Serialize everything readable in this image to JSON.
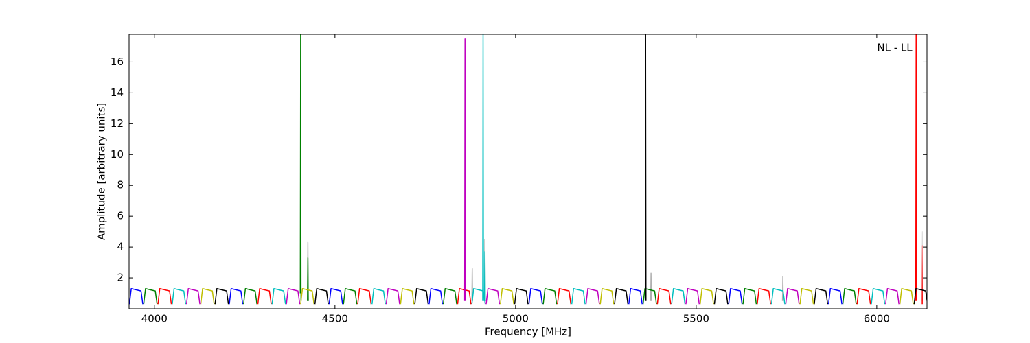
{
  "chart_data": {
    "type": "line",
    "annotation": "NL - LL",
    "x_label": "Frequency [MHz]",
    "y_label": "Amplitude [arbitrary units]",
    "xlim": [
      3930,
      6139
    ],
    "ylim": [
      0,
      17.8
    ],
    "xticks": [
      4000,
      4500,
      5000,
      5500,
      6000
    ],
    "yticks": [
      2,
      4,
      6,
      8,
      10,
      12,
      14,
      16
    ],
    "series": [
      {
        "color": "#b0b0b0",
        "x": [
          4424,
          4425,
          4426,
          null,
          4879,
          4880,
          4881,
          null,
          4914,
          4915,
          4916,
          null,
          5374,
          5375,
          5376,
          null,
          5739,
          5740,
          5741,
          null,
          6124,
          6125,
          6126
        ],
        "values": [
          0.5,
          4.3,
          0.5,
          null,
          0.5,
          2.6,
          0.5,
          null,
          0.5,
          4.5,
          0.5,
          null,
          0.5,
          2.3,
          0.5,
          null,
          0.5,
          2.1,
          0.5,
          null,
          0.5,
          5,
          0.5
        ]
      },
      {
        "color": "#0000ff",
        "x": [
          3931,
          3936,
          3963,
          3968,
          null,
          4207.5,
          4212.5,
          4239.5,
          4244.5,
          null,
          4484,
          4489,
          4516,
          4521,
          null,
          4760.5,
          4765.5,
          4792.5,
          4797.5,
          null,
          5037,
          5042,
          5069,
          5074,
          null,
          5313.5,
          5318.5,
          5345.5,
          5350.5,
          null,
          5590,
          5595,
          5622,
          5627,
          null,
          5866.5,
          5871.5,
          5898.5,
          5903.5
        ],
        "values": [
          0.3,
          1.3,
          1.15,
          0.3,
          null,
          0.3,
          1.3,
          1.15,
          0.3,
          null,
          0.3,
          1.3,
          1.15,
          0.3,
          null,
          0.3,
          1.3,
          1.15,
          0.3,
          null,
          0.3,
          1.3,
          1.15,
          0.3,
          null,
          0.3,
          1.3,
          1.15,
          0.3,
          null,
          0.3,
          1.3,
          1.15,
          0.3,
          null,
          0.3,
          1.3,
          1.15,
          0.3
        ]
      },
      {
        "color": "#008000",
        "x": [
          3970.5,
          3975.5,
          4002.5,
          4007.5,
          null,
          4247,
          4252,
          4279,
          4284,
          null,
          4523.5,
          4528.5,
          4555.5,
          4560.5,
          null,
          4800,
          4805,
          4832,
          4837,
          null,
          5076.5,
          5081.5,
          5108.5,
          5113.5,
          null,
          5353,
          5358,
          5385,
          5390,
          null,
          5629.5,
          5634.5,
          5661.5,
          5666.5,
          null,
          5906,
          5911,
          5938,
          5943,
          null,
          4404,
          4405,
          4406,
          null,
          4424,
          4425,
          4426
        ],
        "values": [
          0.3,
          1.3,
          1.15,
          0.3,
          null,
          0.3,
          1.3,
          1.15,
          0.3,
          null,
          0.3,
          1.3,
          1.15,
          0.3,
          null,
          0.3,
          1.3,
          1.15,
          0.3,
          null,
          0.3,
          1.3,
          1.15,
          0.3,
          null,
          0.3,
          1.3,
          1.15,
          0.3,
          null,
          0.3,
          1.3,
          1.15,
          0.3,
          null,
          0.3,
          1.3,
          1.15,
          0.3,
          null,
          1,
          17.8,
          0.5,
          null,
          0.5,
          3.3,
          0.5
        ]
      },
      {
        "color": "#ff0000",
        "x": [
          4010,
          4015,
          4042,
          4047,
          null,
          4286.5,
          4291.5,
          4318.5,
          4323.5,
          null,
          4563,
          4568,
          4595,
          4600,
          null,
          4839.5,
          4844.5,
          4871.5,
          4876.5,
          null,
          5116,
          5121,
          5148,
          5153,
          null,
          5392.5,
          5397.5,
          5424.5,
          5429.5,
          null,
          5669,
          5674,
          5701,
          5706,
          null,
          5945.5,
          5950.5,
          5977.5,
          5982.5,
          null,
          6108,
          6109,
          6110,
          null,
          6124,
          6125,
          6126
        ],
        "values": [
          0.3,
          1.3,
          1.15,
          0.3,
          null,
          0.3,
          1.3,
          1.15,
          0.3,
          null,
          0.3,
          1.3,
          1.15,
          0.3,
          null,
          0.3,
          1.3,
          1.15,
          0.3,
          null,
          0.3,
          1.3,
          1.15,
          0.3,
          null,
          0.3,
          1.3,
          1.15,
          0.3,
          null,
          0.3,
          1.3,
          1.15,
          0.3,
          null,
          0.3,
          1.3,
          1.15,
          0.3,
          null,
          0.5,
          17.8,
          0.5,
          null,
          0.3,
          4.1,
          0.3
        ]
      },
      {
        "color": "#00bfbf",
        "x": [
          4049.5,
          4054.5,
          4081.5,
          4086.5,
          null,
          4326,
          4331,
          4358,
          4363,
          null,
          4602.5,
          4607.5,
          4634.5,
          4639.5,
          null,
          4879,
          4884,
          4911,
          4916,
          null,
          5155.5,
          5160.5,
          5187.5,
          5192.5,
          null,
          5432,
          5437,
          5464,
          5469,
          null,
          5708.5,
          5713.5,
          5740.5,
          5745.5,
          null,
          5985,
          5990,
          6017,
          6022,
          null,
          4909,
          4910,
          4911,
          null,
          4914,
          4915,
          4916
        ],
        "values": [
          0.3,
          1.3,
          1.15,
          0.3,
          null,
          0.3,
          1.3,
          1.15,
          0.3,
          null,
          0.3,
          1.3,
          1.15,
          0.3,
          null,
          0.3,
          1.3,
          1.15,
          0.3,
          null,
          0.3,
          1.3,
          1.15,
          0.3,
          null,
          0.3,
          1.3,
          1.15,
          0.3,
          null,
          0.3,
          1.3,
          1.15,
          0.3,
          null,
          0.3,
          1.3,
          1.15,
          0.3,
          null,
          0.5,
          17.8,
          0.5,
          null,
          0.5,
          3.7,
          0.5
        ]
      },
      {
        "color": "#bf00bf",
        "x": [
          4089,
          4094,
          4121,
          4126,
          null,
          4365.5,
          4370.5,
          4397.5,
          4402.5,
          null,
          4642,
          4647,
          4674,
          4679,
          null,
          4918.5,
          4923.5,
          4950.5,
          4955.5,
          null,
          5195,
          5200,
          5227,
          5232,
          null,
          5471.5,
          5476.5,
          5503.5,
          5508.5,
          null,
          5748,
          5753,
          5780,
          5785,
          null,
          6024.5,
          6029.5,
          6056.5,
          6061.5,
          null,
          4859,
          4860,
          4861
        ],
        "values": [
          0.3,
          1.3,
          1.15,
          0.3,
          null,
          0.3,
          1.3,
          1.15,
          0.3,
          null,
          0.3,
          1.3,
          1.15,
          0.3,
          null,
          0.3,
          1.3,
          1.15,
          0.3,
          null,
          0.3,
          1.3,
          1.15,
          0.3,
          null,
          0.3,
          1.3,
          1.15,
          0.3,
          null,
          0.3,
          1.3,
          1.15,
          0.3,
          null,
          0.3,
          1.3,
          1.15,
          0.3,
          null,
          0.5,
          17.5,
          0.5
        ]
      },
      {
        "color": "#bfbf00",
        "x": [
          4128.5,
          4133.5,
          4160.5,
          4165.5,
          null,
          4405,
          4410,
          4437,
          4442,
          null,
          4681.5,
          4686.5,
          4713.5,
          4718.5,
          null,
          4958,
          4963,
          4990,
          4995,
          null,
          5234.5,
          5239.5,
          5266.5,
          5271.5,
          null,
          5511,
          5516,
          5543,
          5548,
          null,
          5787.5,
          5792.5,
          5819.5,
          5824.5,
          null,
          6064,
          6069,
          6096,
          6101
        ],
        "values": [
          0.3,
          1.3,
          1.15,
          0.3,
          null,
          0.3,
          1.3,
          1.15,
          0.3,
          null,
          0.3,
          1.3,
          1.15,
          0.3,
          null,
          0.3,
          1.3,
          1.15,
          0.3,
          null,
          0.3,
          1.3,
          1.15,
          0.3,
          null,
          0.3,
          1.3,
          1.15,
          0.3,
          null,
          0.3,
          1.3,
          1.15,
          0.3,
          null,
          0.3,
          1.3,
          1.15,
          0.3
        ]
      },
      {
        "color": "#000000",
        "x": [
          4168,
          4173,
          4200,
          4205,
          null,
          4444.5,
          4449.5,
          4476.5,
          4481.5,
          null,
          4721,
          4726,
          4753,
          4758,
          null,
          4997.5,
          5002.5,
          5029.5,
          5034.5,
          null,
          5274,
          5279,
          5306,
          5311,
          null,
          5550.5,
          5555.5,
          5582.5,
          5587.5,
          null,
          5827,
          5832,
          5859,
          5864,
          null,
          6103.5,
          6108.5,
          6135.5,
          6140.5,
          null,
          5359,
          5360,
          5361
        ],
        "values": [
          0.3,
          1.3,
          1.15,
          0.3,
          null,
          0.3,
          1.3,
          1.15,
          0.3,
          null,
          0.3,
          1.3,
          1.15,
          0.3,
          null,
          0.3,
          1.3,
          1.15,
          0.3,
          null,
          0.3,
          1.3,
          1.15,
          0.3,
          null,
          0.3,
          1.3,
          1.15,
          0.3,
          null,
          0.3,
          1.3,
          1.15,
          0.3,
          null,
          0.3,
          1.3,
          1.15,
          0.3,
          null,
          0.5,
          17.8,
          0.5
        ]
      }
    ]
  }
}
